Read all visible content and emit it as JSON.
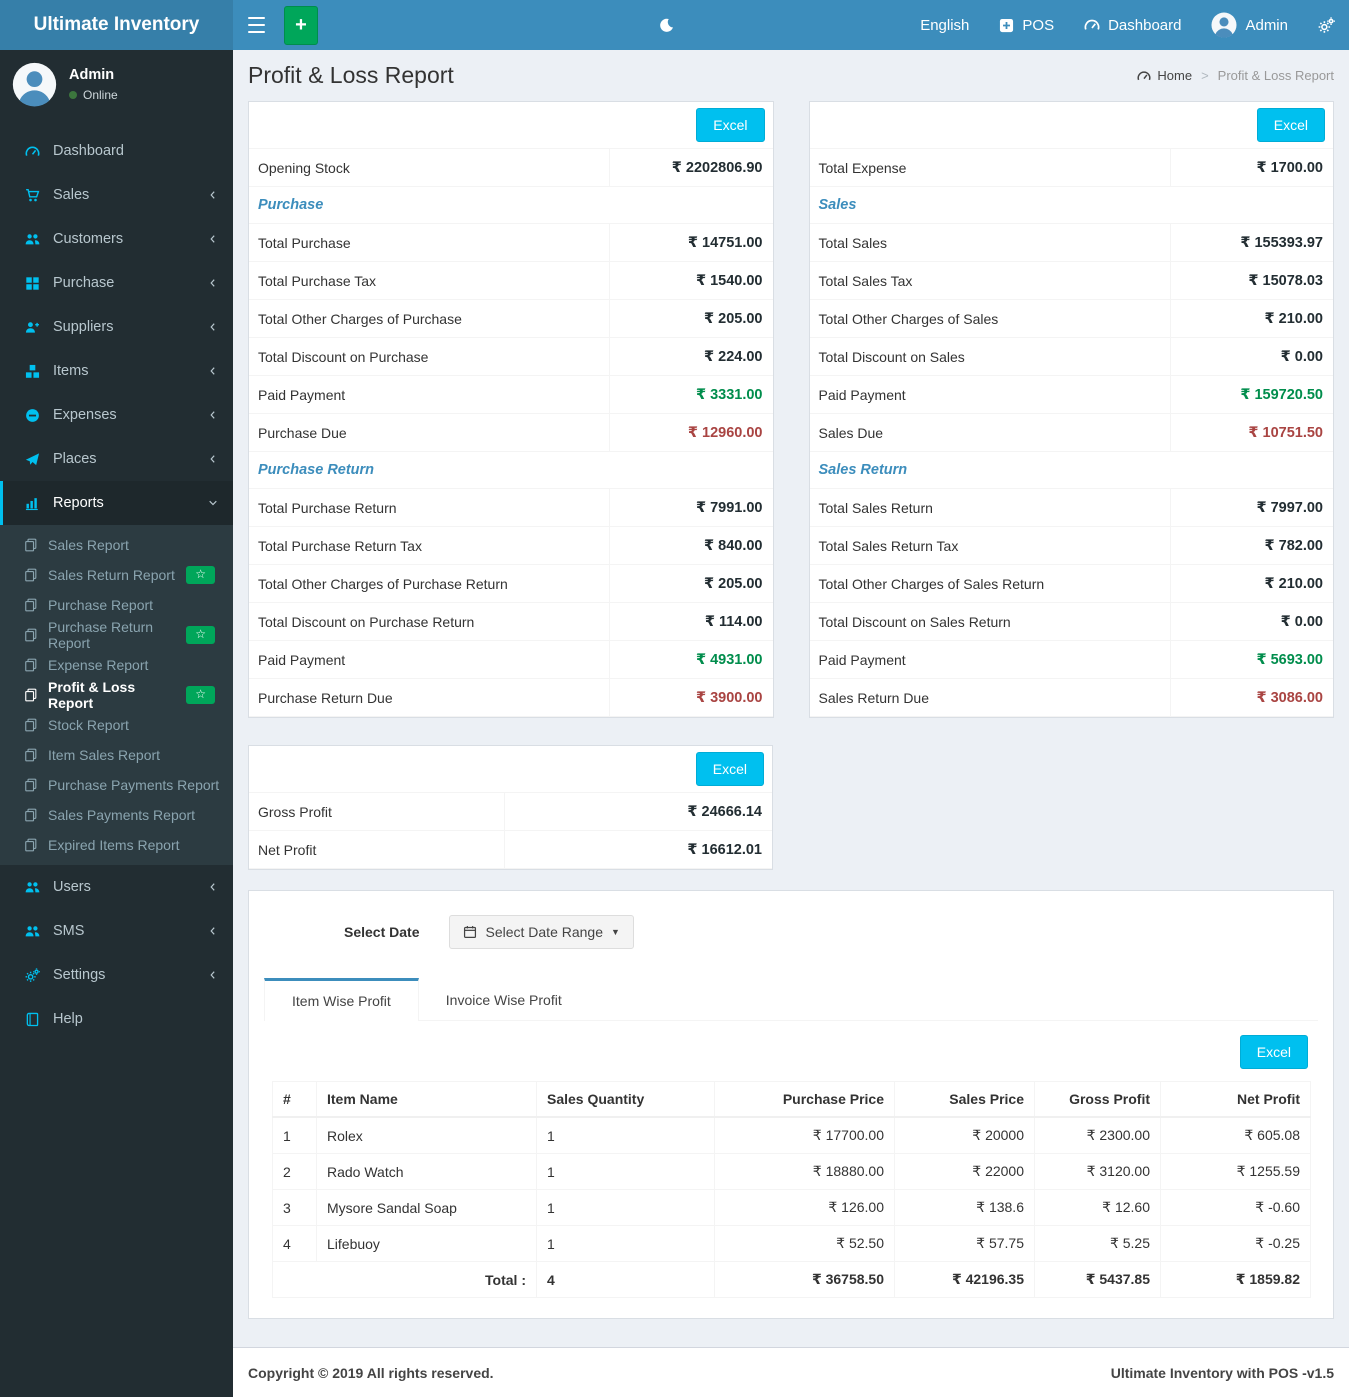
{
  "colors": {
    "navbar": "#3c8dbc",
    "logo_bg": "#367fa9",
    "sidebar_bg": "#222d32",
    "submenu_bg": "#2c3b41",
    "accent_cyan": "#00c0ef",
    "green": "#00a65a",
    "value_green": "#008d4c",
    "value_red": "#a94442",
    "section_blue": "#3c8dbc",
    "content_bg": "#ecf0f5"
  },
  "navbar": {
    "brand": "Ultimate Inventory",
    "plus_button": "+",
    "language": "English",
    "pos": "POS",
    "dashboard": "Dashboard",
    "user": "Admin"
  },
  "sidebar": {
    "user": {
      "name": "Admin",
      "status": "Online"
    },
    "menu": [
      {
        "label": "Dashboard",
        "icon": "tachometer-icon",
        "arrow": ""
      },
      {
        "label": "Sales",
        "icon": "shopping-cart-icon",
        "arrow": "left"
      },
      {
        "label": "Customers",
        "icon": "users-icon",
        "arrow": "left"
      },
      {
        "label": "Purchase",
        "icon": "grid-icon",
        "arrow": "left"
      },
      {
        "label": "Suppliers",
        "icon": "user-plus-icon",
        "arrow": "left"
      },
      {
        "label": "Items",
        "icon": "cubes-icon",
        "arrow": "left"
      },
      {
        "label": "Expenses",
        "icon": "minus-circle-icon",
        "arrow": "left"
      },
      {
        "label": "Places",
        "icon": "paper-plane-icon",
        "arrow": "left"
      },
      {
        "label": "Reports",
        "icon": "bar-chart-icon",
        "arrow": "down",
        "active": true
      }
    ],
    "reports_submenu": [
      {
        "label": "Sales Report"
      },
      {
        "label": "Sales Return Report",
        "badge": "star"
      },
      {
        "label": "Purchase Report"
      },
      {
        "label": "Purchase Return Report",
        "badge": "star"
      },
      {
        "label": "Expense Report"
      },
      {
        "label": "Profit & Loss Report",
        "badge": "star",
        "active": true
      },
      {
        "label": "Stock Report"
      },
      {
        "label": "Item Sales Report"
      },
      {
        "label": "Purchase Payments Report"
      },
      {
        "label": "Sales Payments Report"
      },
      {
        "label": "Expired Items Report"
      }
    ],
    "menu_bottom": [
      {
        "label": "Users",
        "icon": "users-icon",
        "arrow": "left"
      },
      {
        "label": "SMS",
        "icon": "users-icon",
        "arrow": "left"
      },
      {
        "label": "Settings",
        "icon": "gears-icon",
        "arrow": "left"
      },
      {
        "label": "Help",
        "icon": "book-icon",
        "arrow": ""
      }
    ]
  },
  "page": {
    "title": "Profit & Loss Report",
    "breadcrumb": {
      "home": "Home",
      "current": "Profit & Loss Report"
    }
  },
  "purchase_panel": {
    "excel_label": "Excel",
    "rows": [
      {
        "label": "Opening Stock",
        "value": "₹ 2202806.90"
      },
      {
        "label": "Purchase",
        "type": "section"
      },
      {
        "label": "Total Purchase",
        "value": "₹ 14751.00"
      },
      {
        "label": "Total Purchase Tax",
        "value": "₹ 1540.00"
      },
      {
        "label": "Total Other Charges of Purchase",
        "value": "₹ 205.00"
      },
      {
        "label": "Total Discount on Purchase",
        "value": "₹ 224.00"
      },
      {
        "label": "Paid Payment",
        "value": "₹ 3331.00",
        "type": "paid"
      },
      {
        "label": "Purchase Due",
        "value": "₹ 12960.00",
        "type": "due"
      },
      {
        "label": "Purchase Return",
        "type": "section"
      },
      {
        "label": "Total Purchase Return",
        "value": "₹ 7991.00"
      },
      {
        "label": "Total Purchase Return Tax",
        "value": "₹ 840.00"
      },
      {
        "label": "Total Other Charges of Purchase Return",
        "value": "₹ 205.00"
      },
      {
        "label": "Total Discount on Purchase Return",
        "value": "₹ 114.00"
      },
      {
        "label": "Paid Payment",
        "value": "₹ 4931.00",
        "type": "paid"
      },
      {
        "label": "Purchase Return Due",
        "value": "₹ 3900.00",
        "type": "due"
      }
    ]
  },
  "sales_panel": {
    "excel_label": "Excel",
    "rows": [
      {
        "label": "Total Expense",
        "value": "₹ 1700.00"
      },
      {
        "label": "Sales",
        "type": "section"
      },
      {
        "label": "Total Sales",
        "value": "₹ 155393.97"
      },
      {
        "label": "Total Sales Tax",
        "value": "₹ 15078.03"
      },
      {
        "label": "Total Other Charges of Sales",
        "value": "₹ 210.00"
      },
      {
        "label": "Total Discount on Sales",
        "value": "₹ 0.00"
      },
      {
        "label": "Paid Payment",
        "value": "₹ 159720.50",
        "type": "paid"
      },
      {
        "label": "Sales Due",
        "value": "₹ 10751.50",
        "type": "due"
      },
      {
        "label": "Sales Return",
        "type": "section"
      },
      {
        "label": "Total Sales Return",
        "value": "₹ 7997.00"
      },
      {
        "label": "Total Sales Return Tax",
        "value": "₹ 782.00"
      },
      {
        "label": "Total Other Charges of Sales Return",
        "value": "₹ 210.00"
      },
      {
        "label": "Total Discount on Sales Return",
        "value": "₹ 0.00"
      },
      {
        "label": "Paid Payment",
        "value": "₹ 5693.00",
        "type": "paid"
      },
      {
        "label": "Sales Return Due",
        "value": "₹ 3086.00",
        "type": "due"
      }
    ]
  },
  "profit_panel": {
    "excel_label": "Excel",
    "rows": [
      {
        "label": "Gross Profit",
        "value": "₹ 24666.14"
      },
      {
        "label": "Net Profit",
        "value": "₹ 16612.01"
      }
    ]
  },
  "report_section": {
    "select_date_label": "Select Date",
    "date_range_button": "Select Date Range",
    "tabs": [
      {
        "label": "Item Wise Profit",
        "active": true
      },
      {
        "label": "Invoice Wise Profit",
        "active": false
      }
    ],
    "excel_label": "Excel",
    "table": {
      "headers": [
        "#",
        "Item Name",
        "Sales Quantity",
        "Purchase Price",
        "Sales Price",
        "Gross Profit",
        "Net Profit"
      ],
      "rows": [
        [
          "1",
          "Rolex",
          "1",
          "₹ 17700.00",
          "₹ 20000",
          "₹ 2300.00",
          "₹ 605.08"
        ],
        [
          "2",
          "Rado Watch",
          "1",
          "₹ 18880.00",
          "₹ 22000",
          "₹ 3120.00",
          "₹ 1255.59"
        ],
        [
          "3",
          "Mysore Sandal Soap",
          "1",
          "₹ 126.00",
          "₹ 138.6",
          "₹ 12.60",
          "₹ -0.60"
        ],
        [
          "4",
          "Lifebuoy",
          "1",
          "₹ 52.50",
          "₹ 57.75",
          "₹ 5.25",
          "₹ -0.25"
        ]
      ],
      "total_row": {
        "label": "Total :",
        "quantity": "4",
        "purchase_price": "₹ 36758.50",
        "sales_price": "₹ 42196.35",
        "gross_profit": "₹ 5437.85",
        "net_profit": "₹ 1859.82"
      }
    }
  },
  "footer": {
    "left": "Copyright © 2019 All rights reserved.",
    "right": "Ultimate Inventory with POS -v1.5"
  }
}
